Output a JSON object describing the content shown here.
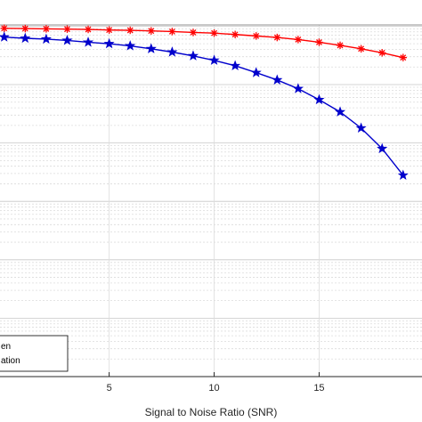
{
  "chart_data": {
    "type": "line",
    "xlabel": "Signal to Noise Ratio (SNR)",
    "ylabel": "",
    "title": "",
    "xlim": [
      -0.2,
      19.9
    ],
    "ylim": [
      1e-06,
      1.05
    ],
    "y_scale": "log",
    "x_ticks": [
      5,
      10,
      15
    ],
    "grid": true,
    "legend_placement": "bottom-left",
    "series": [
      {
        "name": "en",
        "color": "#ff0000",
        "marker": "asterisk",
        "x": [
          0,
          1,
          2,
          3,
          4,
          5,
          6,
          7,
          8,
          9,
          10,
          11,
          12,
          13,
          14,
          15,
          16,
          17,
          18,
          19
        ],
        "y": [
          0.92,
          0.91,
          0.9,
          0.89,
          0.88,
          0.86,
          0.85,
          0.83,
          0.81,
          0.78,
          0.76,
          0.72,
          0.68,
          0.64,
          0.59,
          0.53,
          0.47,
          0.41,
          0.35,
          0.29
        ]
      },
      {
        "name": "ation",
        "color": "#0000cc",
        "marker": "star",
        "x": [
          0,
          1,
          2,
          3,
          4,
          5,
          6,
          7,
          8,
          9,
          10,
          11,
          12,
          13,
          14,
          15,
          16,
          17,
          18,
          19
        ],
        "y": [
          0.65,
          0.62,
          0.6,
          0.57,
          0.53,
          0.5,
          0.46,
          0.41,
          0.36,
          0.31,
          0.26,
          0.21,
          0.16,
          0.12,
          0.085,
          0.055,
          0.034,
          0.018,
          0.008,
          0.0028
        ]
      }
    ]
  }
}
